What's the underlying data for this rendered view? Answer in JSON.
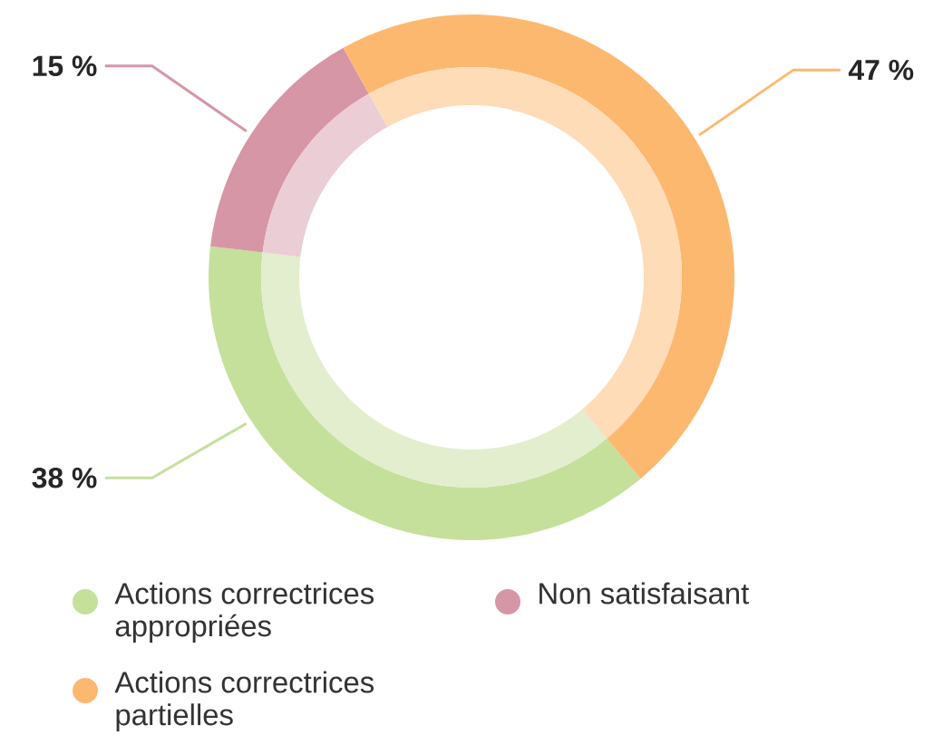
{
  "chart_data": {
    "type": "donut",
    "categories": [
      "Actions correctrices appropriées",
      "Non satisfaisant",
      "Actions correctrices partielles"
    ],
    "series": [
      {
        "values": [
          38,
          15,
          47
        ],
        "colors": [
          "#c5e09b",
          "#d696a6",
          "#fdb870"
        ],
        "value_labels": [
          "38 %",
          "15 %",
          "47 %"
        ]
      },
      {
        "values": [
          38,
          15,
          47
        ],
        "colors": [
          "#e2eecd",
          "#ebcdd5",
          "#fddcb7"
        ]
      }
    ],
    "legend": "bottom"
  }
}
